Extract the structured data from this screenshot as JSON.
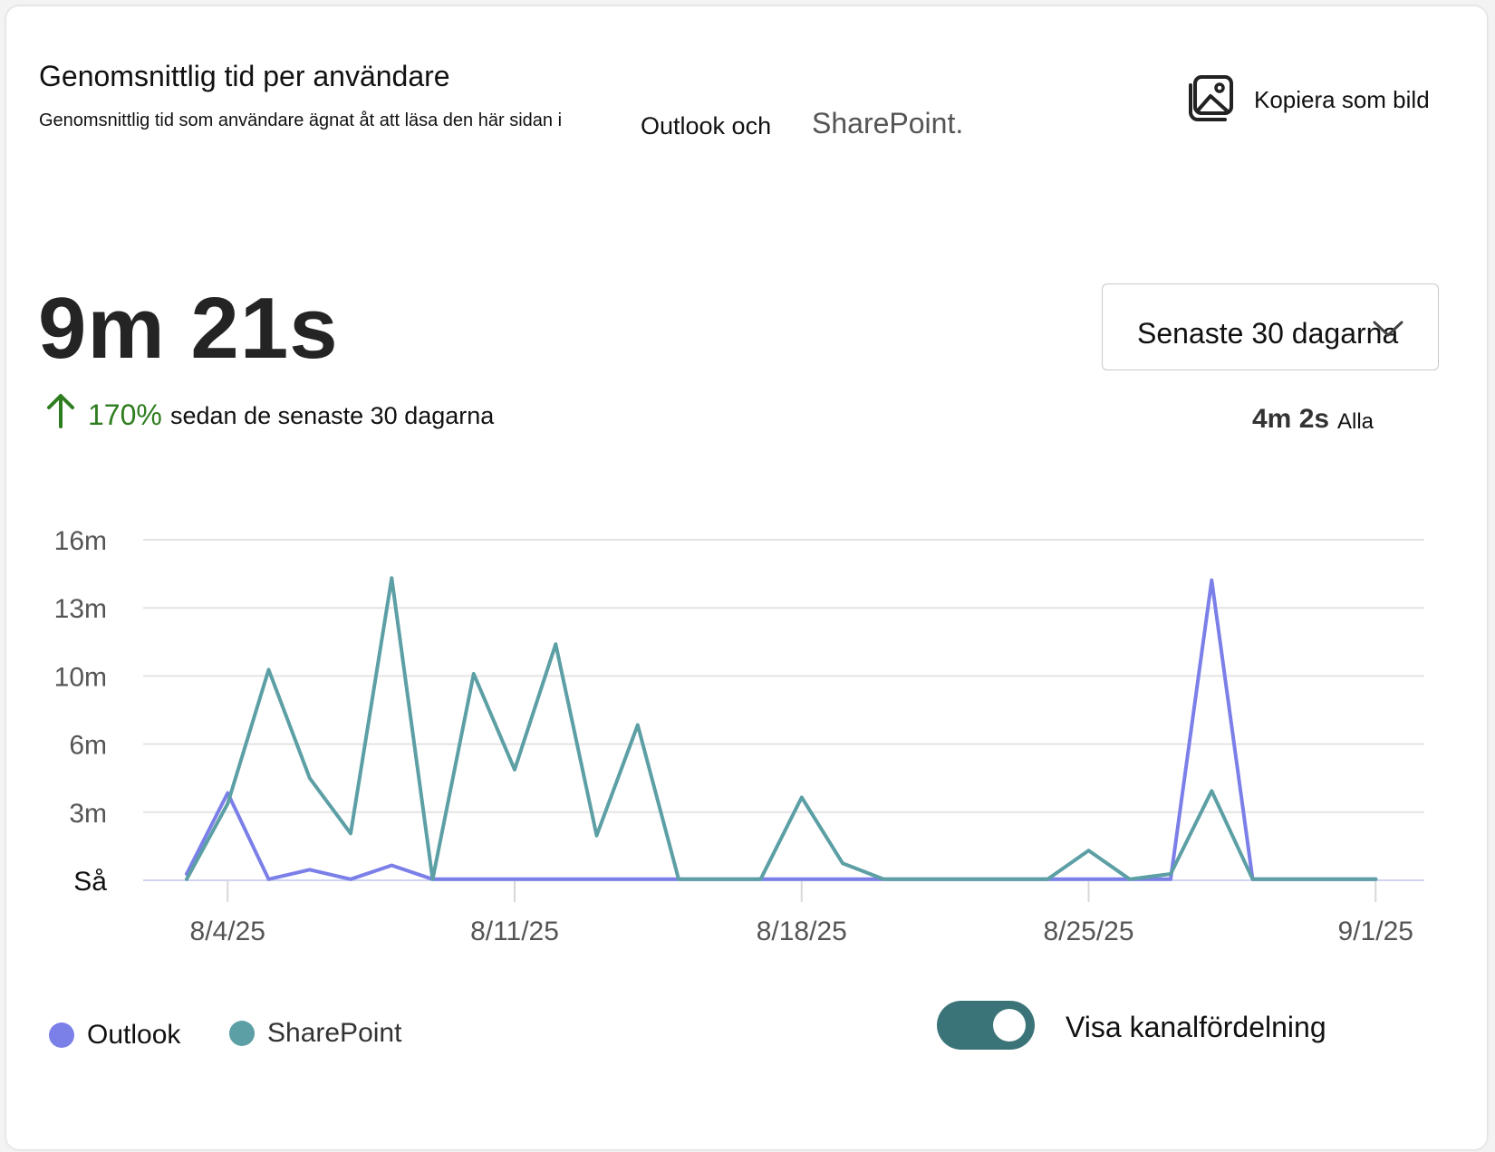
{
  "header": {
    "title": "Genomsnittlig tid per användare",
    "subtitle": "Genomsnittlig tid som användare ägnat åt att läsa den här sidan i",
    "subtitle_outlook": "Outlook och",
    "subtitle_sharepoint": "SharePoint.",
    "copy_label": "Kopiera som bild",
    "copy_icon": "image-icon"
  },
  "kpi": {
    "value": "9m 21s",
    "change_pct": "170%",
    "change_text": "sedan de senaste 30 dagarna",
    "trend_icon": "arrow-up-icon"
  },
  "filter": {
    "selected": "Senaste 30 dagarna",
    "avg_value": "4m 2s",
    "avg_label": "Alla"
  },
  "toggle": {
    "label": "Visa kanalfördelning",
    "on": true
  },
  "colors": {
    "outlook": "#7b7fe8",
    "sharepoint": "#5c9fa5",
    "positive": "#2e7d1f",
    "toggle": "#3a7478"
  },
  "chart_data": {
    "type": "line",
    "y_tick_labels": [
      "Så",
      "3m",
      "6m",
      "10m",
      "13m",
      "16m"
    ],
    "y_tick_values": [
      0,
      3.2,
      6.4,
      9.6,
      12.8,
      16
    ],
    "ylim": [
      0,
      16
    ],
    "x_tick_labels": [
      "8/4/25",
      "8/11/25",
      "8/18/25",
      "8/25/25",
      "9/1/25"
    ],
    "x_tick_index": [
      1,
      8,
      15,
      22,
      29
    ],
    "x": [
      "8/3/25",
      "8/4/25",
      "8/5/25",
      "8/6/25",
      "8/7/25",
      "8/8/25",
      "8/9/25",
      "8/10/25",
      "8/11/25",
      "8/12/25",
      "8/13/25",
      "8/14/25",
      "8/15/25",
      "8/16/25",
      "8/17/25",
      "8/18/25",
      "8/19/25",
      "8/20/25",
      "8/21/25",
      "8/22/25",
      "8/23/25",
      "8/24/25",
      "8/25/25",
      "8/26/25",
      "8/27/25",
      "8/28/25",
      "8/29/25",
      "8/30/25",
      "8/31/25",
      "9/1/25"
    ],
    "grid": true,
    "legend_position": "bottom-left",
    "series": [
      {
        "name": "Outlook",
        "color": "#7b7fe8",
        "values": [
          0.3,
          4.1,
          0.05,
          0.5,
          0.05,
          0.7,
          0.05,
          0.05,
          0.05,
          0.05,
          0.05,
          0.05,
          0.05,
          0.05,
          0.05,
          0.05,
          0.05,
          0.05,
          0.05,
          0.05,
          0.05,
          0.05,
          0.05,
          0.05,
          0.05,
          14.1,
          0.05,
          0.05,
          0.05,
          0.05
        ]
      },
      {
        "name": "SharePoint",
        "color": "#5c9fa5",
        "values": [
          0.05,
          3.6,
          9.9,
          4.8,
          2.2,
          14.2,
          0.05,
          9.7,
          5.2,
          11.1,
          2.1,
          7.3,
          0.05,
          0.05,
          0.05,
          3.9,
          0.8,
          0.05,
          0.05,
          0.05,
          0.05,
          0.05,
          1.4,
          0.05,
          0.3,
          4.2,
          0.05,
          0.05,
          0.05,
          0.05
        ]
      }
    ]
  }
}
